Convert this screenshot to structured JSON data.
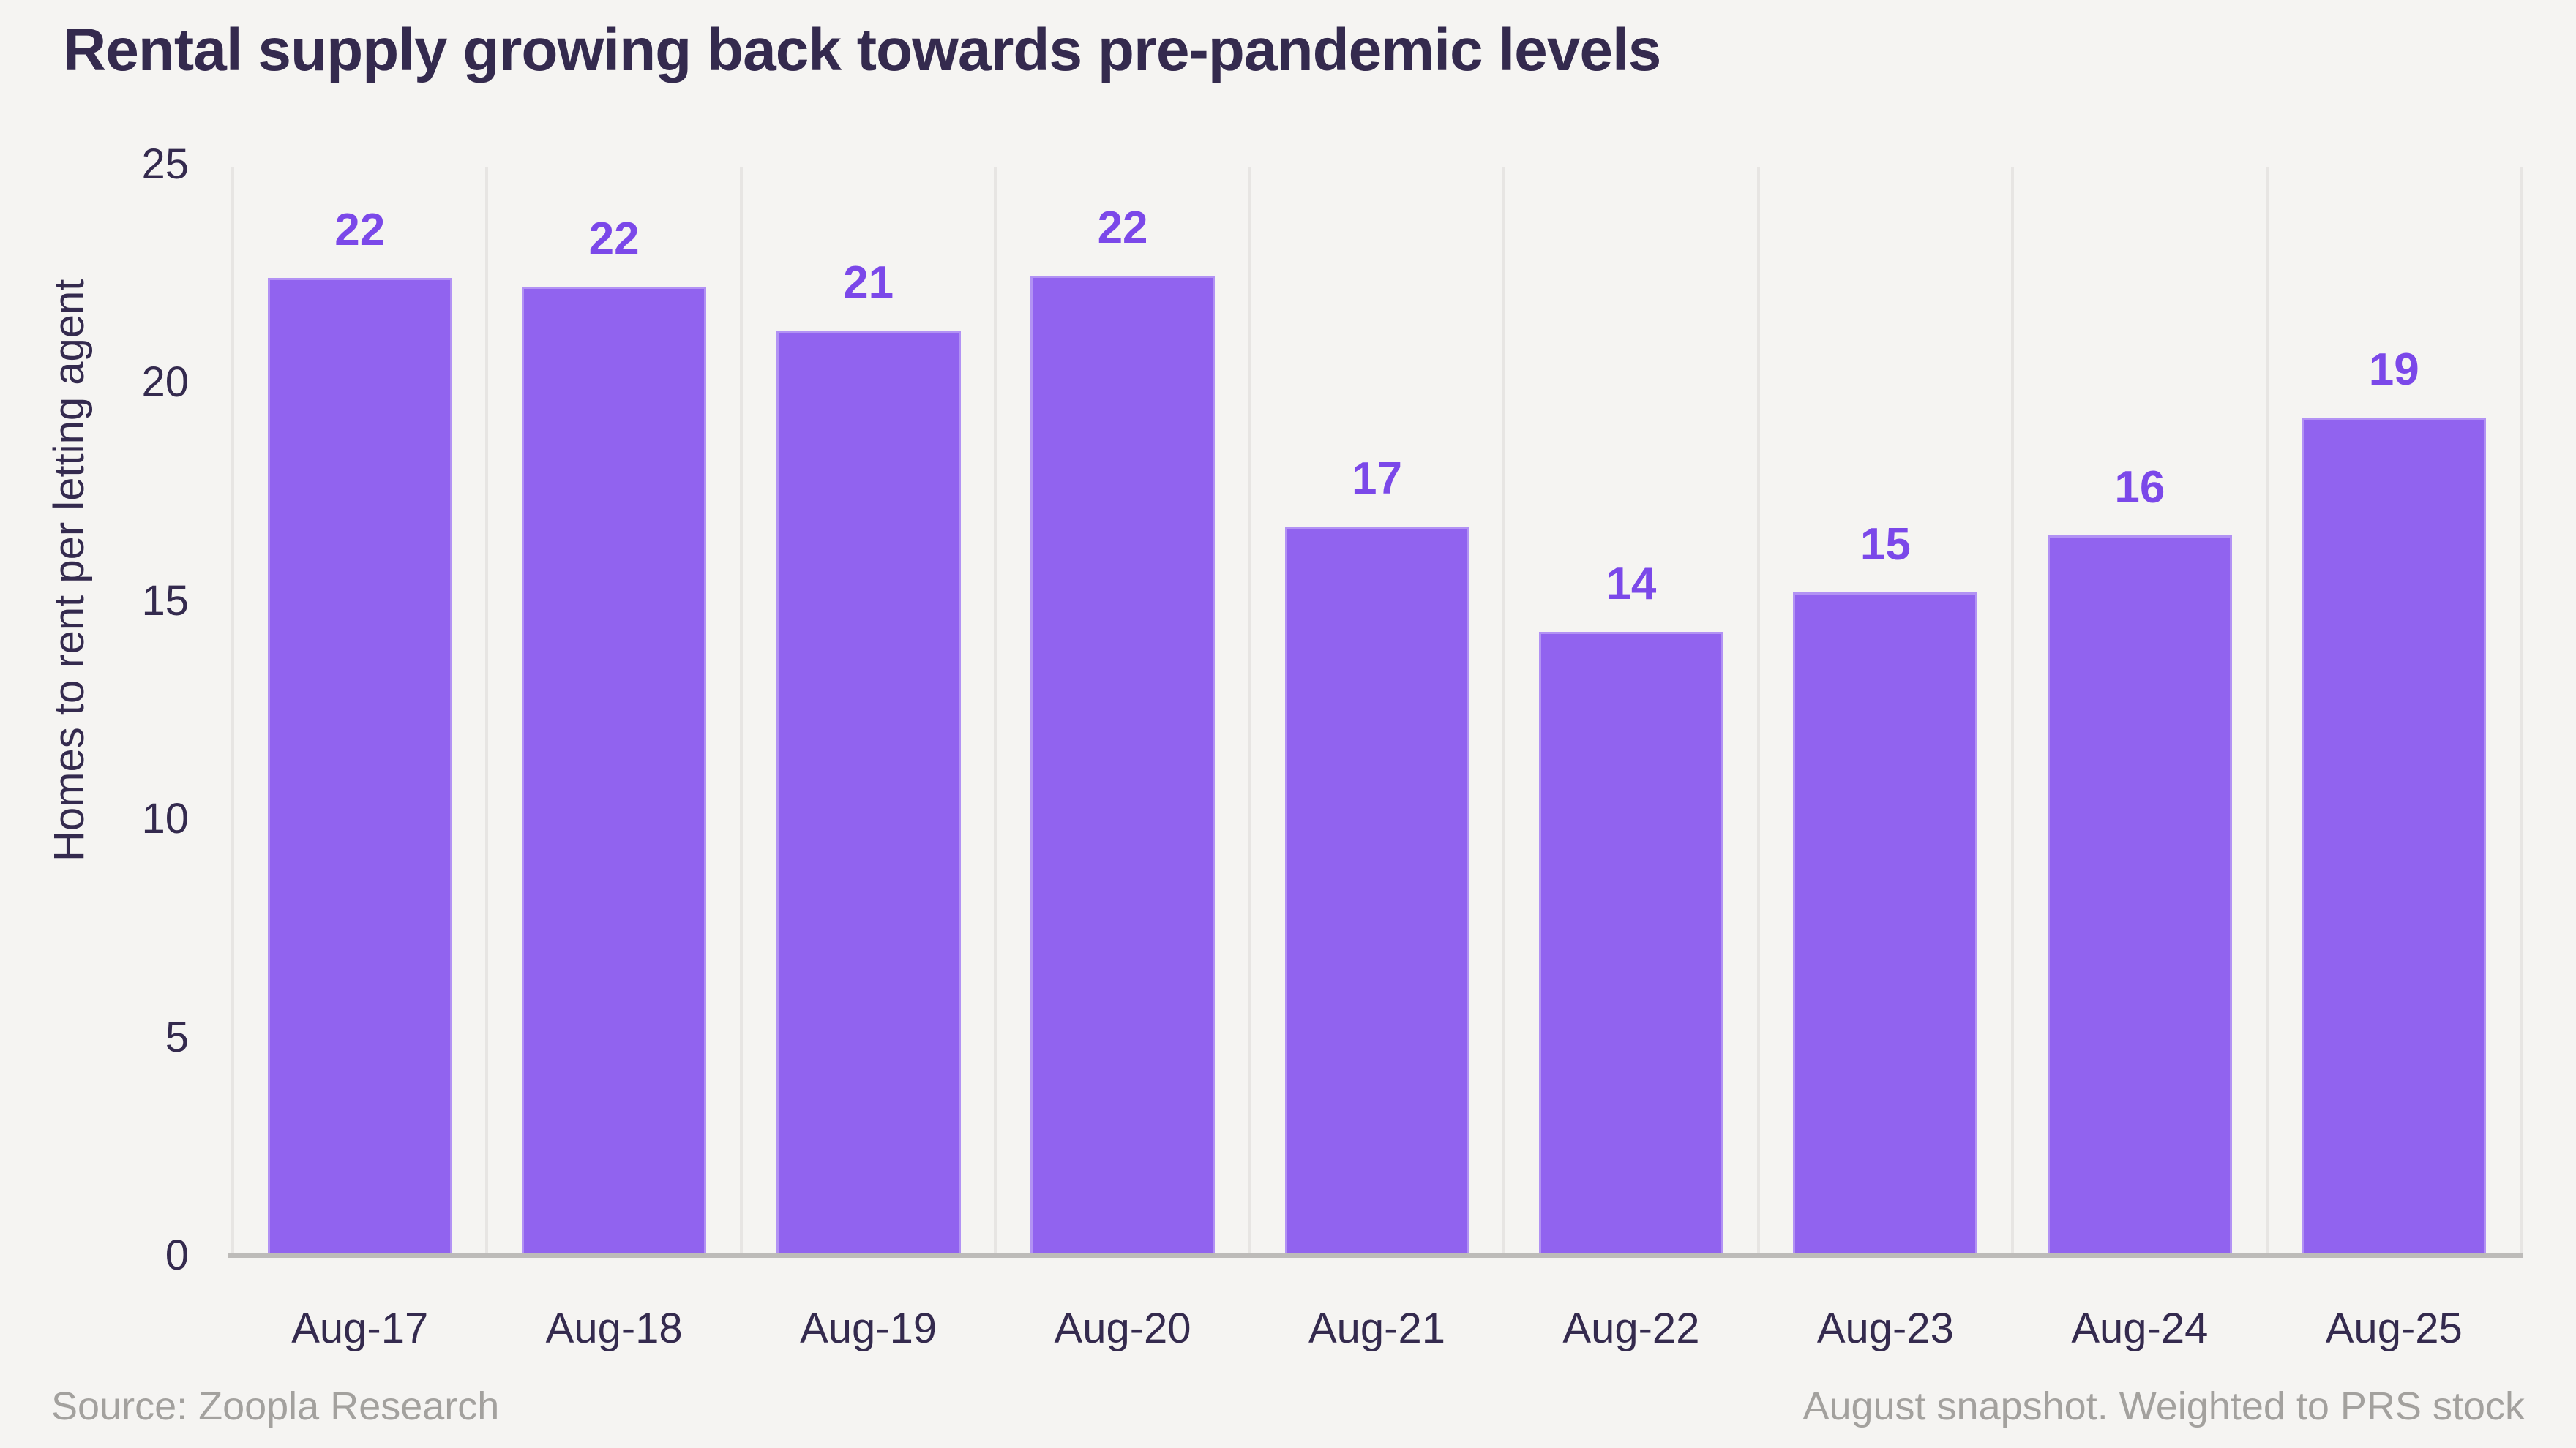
{
  "page": {
    "title": "Rental supply growing back towards pre-pandemic levels",
    "footer_left": "Source: Zoopla Research",
    "footer_right": "August snapshot. Weighted to PRS stock"
  },
  "chart_data": {
    "type": "bar",
    "title": "Rental supply growing back towards pre-pandemic levels",
    "categories": [
      "Aug-17",
      "Aug-18",
      "Aug-19",
      "Aug-20",
      "Aug-21",
      "Aug-22",
      "Aug-23",
      "Aug-24",
      "Aug-25"
    ],
    "values": [
      22,
      22,
      21,
      22,
      17,
      14,
      15,
      16,
      19
    ],
    "values_precise": [
      22.4,
      22.2,
      21.2,
      22.45,
      16.7,
      14.3,
      15.2,
      16.5,
      19.2
    ],
    "bar_labels": [
      "22",
      "22",
      "21",
      "22",
      "17",
      "14",
      "15",
      "16",
      "19"
    ],
    "xlabel": "",
    "ylabel": "Homes to rent per letting agent",
    "ylim": [
      0,
      25
    ],
    "yticks": [
      0,
      5,
      10,
      15,
      20,
      25
    ],
    "grid": "vertical category separators only, gray baseline at zero, no horizontal gridlines",
    "legend": "none",
    "colors": {
      "background": "#F5F4F2",
      "bar": "#9163EF",
      "bar_label": "#7B48E9",
      "text_dark": "#342A4E",
      "separator": "#E7E5E3",
      "baseline": "#BDBBB9",
      "footer_text": "#A3A19E"
    }
  }
}
